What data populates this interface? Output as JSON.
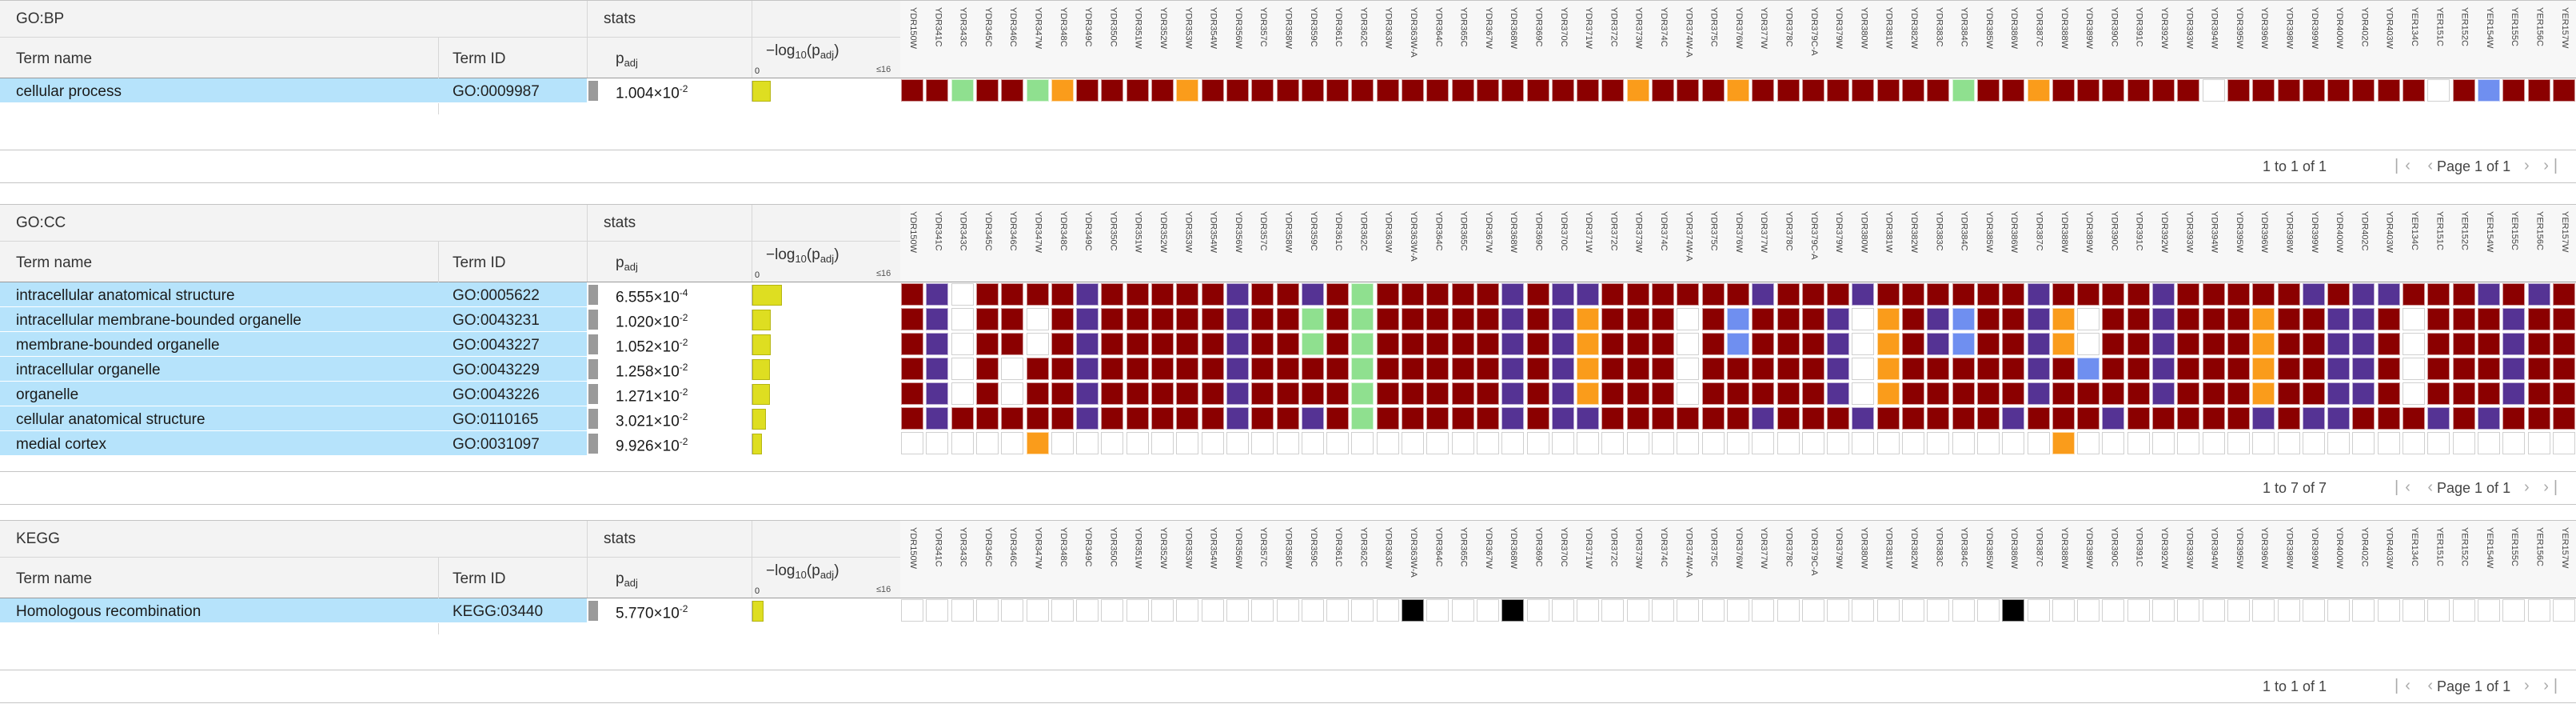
{
  "columns": {
    "term_name": "Term name",
    "term_id": "Term ID",
    "stats": "stats",
    "padj": "p",
    "padj_sub": "adj",
    "neglog": "−log",
    "neglog_sub": "10",
    "neglog_tail": "(p",
    "neglog_tail_sub": "adj",
    "neglog_close": ")",
    "scale_min": "0",
    "scale_max": "≤16"
  },
  "genes": [
    "YDR150W",
    "YDR341C",
    "YDR343C",
    "YDR345C",
    "YDR346C",
    "YDR347W",
    "YDR348C",
    "YDR349C",
    "YDR350C",
    "YDR351W",
    "YDR352W",
    "YDR353W",
    "YDR354W",
    "YDR356W",
    "YDR357C",
    "YDR358W",
    "YDR359C",
    "YDR361C",
    "YDR362C",
    "YDR363W",
    "YDR363W-A",
    "YDR364C",
    "YDR365C",
    "YDR367W",
    "YDR368W",
    "YDR369C",
    "YDR370C",
    "YDR371W",
    "YDR372C",
    "YDR373W",
    "YDR374C",
    "YDR374W-A",
    "YDR375C",
    "YDR376W",
    "YDR377W",
    "YDR378C",
    "YDR379C-A",
    "YDR379W",
    "YDR380W",
    "YDR381W",
    "YDR382W",
    "YDR383C",
    "YDR384C",
    "YDR385W",
    "YDR386W",
    "YDR387C",
    "YDR388W",
    "YDR389W",
    "YDR390C",
    "YDR391C",
    "YDR392W",
    "YDR393W",
    "YDR394W",
    "YDR395W",
    "YDR396W",
    "YDR398W",
    "YDR399W",
    "YDR400W",
    "YDR402C",
    "YDR403W",
    "YER134C",
    "YER151C",
    "YER152C",
    "YER154W",
    "YER155C",
    "YER156C",
    "YER157W"
  ],
  "sections": [
    {
      "source": "GO:BP",
      "pager": {
        "count": "1 to 1 of 1",
        "page": "Page 1 of 1"
      },
      "rows": [
        {
          "name": "cellular process",
          "id": "GO:0009987",
          "padj": "1.004×10",
          "exp": "-2",
          "neglog": 2.0,
          "colors": "RRGRRGORRRRORRRRRRRRRRRRRRRRRORRRORRRRRRRRGRRORRRRRRWRRRRRRRRWRBRRRR"
        }
      ]
    },
    {
      "source": "GO:CC",
      "pager": {
        "count": "1 to 7 of 7",
        "page": "Page 1 of 1"
      },
      "rows": [
        {
          "name": "intracellular anatomical structure",
          "id": "GO:0005622",
          "padj": "6.555×10",
          "exp": "-4",
          "neglog": 3.18,
          "colors": "RPWRRRRPRRRRRPRRPRGRRRRRPRPPRRRRRRPRRRPRRRRRRPRRRRPRRRRRPRPPRRRPRPRR"
        },
        {
          "name": "intracellular membrane-bounded organelle",
          "id": "GO:0043231",
          "padj": "1.020×10",
          "exp": "-2",
          "neglog": 1.99,
          "colors": "RPWRRWRPRRRRRPRRGRGRRRRRPRPORRRWRBRRRPWORPBRRPOWRRPRRRORRPPRWRRRPRRR"
        },
        {
          "name": "membrane-bounded organelle",
          "id": "GO:0043227",
          "padj": "1.052×10",
          "exp": "-2",
          "neglog": 1.98,
          "colors": "RPWRRWRPRRRRRPRRGRGRRRRRPRPORRRWRBRRRPWORPBRRPOWRRPRRRORRPPRWRRRPRRR"
        },
        {
          "name": "intracellular organelle",
          "id": "GO:0043229",
          "padj": "1.258×10",
          "exp": "-2",
          "neglog": 1.9,
          "colors": "RPWRWRRPRRRRRPRRRRGRRRRRPRPORRRWRRRRRPWORRRRRPRBRRPRRRORRPPRWRRRPRRR"
        },
        {
          "name": "organelle",
          "id": "GO:0043226",
          "padj": "1.271×10",
          "exp": "-2",
          "neglog": 1.9,
          "colors": "RPWRWRRPRRRRRPRRRRGRRRRRPRPORRRWRRRRRPWORRRRRPRRRRPRRRORRPPRWRRRPRRR"
        },
        {
          "name": "cellular anatomical structure",
          "id": "GO:0110165",
          "padj": "3.021×10",
          "exp": "-2",
          "neglog": 1.52,
          "colors": "RPRRRRRPRRRRRPRRPRGRRRRRPRPPRRRRRRPRRRPRRRRRPRRRPRRRRRPRPPRRRPRPRRRR"
        },
        {
          "name": "medial cortex",
          "id": "GO:0031097",
          "padj": "9.926×10",
          "exp": "-2",
          "neglog": 1.0,
          "colors": "WWWWWOWWWWWWWWWWWWWWWWWWWWWWWWWWWWWWWWWWWWWWWWOWWWWWWWWWWWWWWWWWWWWW"
        }
      ]
    },
    {
      "source": "KEGG",
      "pager": {
        "count": "1 to 1 of 1",
        "page": "Page 1 of 1"
      },
      "rows": [
        {
          "name": "Homologous recombination",
          "id": "KEGG:03440",
          "padj": "5.770×10",
          "exp": "-2",
          "neglog": 1.24,
          "colors": "WWWWWWWWWWWWWWWWWWWWKWWWKWWWWWWWWWWWWWWWWWWWKWWWWWWWWWWWWWWWWWWWWWWW"
        }
      ]
    }
  ],
  "palette": {
    "R": "#8b0000",
    "P": "#553394",
    "G": "#8fe08f",
    "O": "#fa9c1b",
    "B": "#6f8ff0",
    "W": "#ffffff",
    "K": "#000000"
  }
}
